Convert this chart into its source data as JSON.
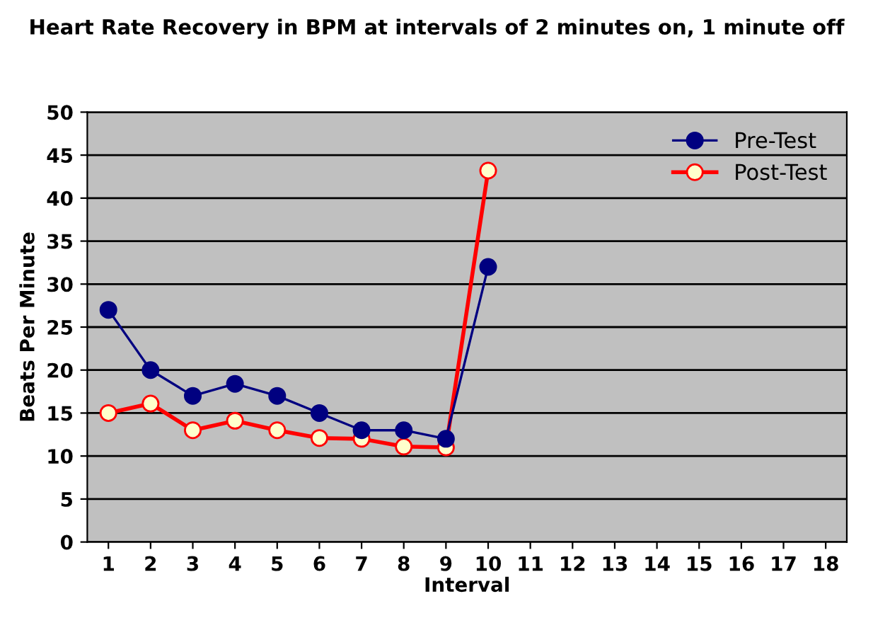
{
  "chart_data": {
    "type": "line",
    "title": "Heart Rate Recovery in BPM at intervals of 2 minutes on, 1 minute off",
    "xlabel": "Interval",
    "ylabel": "Beats Per Minute",
    "categories": [
      "1",
      "2",
      "3",
      "4",
      "5",
      "6",
      "7",
      "8",
      "9",
      "10",
      "11",
      "12",
      "13",
      "14",
      "15",
      "16",
      "17",
      "18"
    ],
    "series": [
      {
        "name": "Pre-Test",
        "color": "#000080",
        "values": [
          27,
          20,
          17,
          18.4,
          17,
          15,
          13,
          13,
          12,
          32,
          null,
          null,
          null,
          null,
          null,
          null,
          null,
          null
        ]
      },
      {
        "name": "Post-Test",
        "color": "#ff0000",
        "values": [
          15,
          16.1,
          13,
          14.1,
          13,
          12.1,
          12,
          11.1,
          11,
          43.2,
          null,
          null,
          null,
          null,
          null,
          null,
          null,
          null
        ]
      }
    ],
    "ylim": [
      0,
      50
    ],
    "yticks": [
      0,
      5,
      10,
      15,
      20,
      25,
      30,
      35,
      40,
      45,
      50
    ],
    "grid": "y",
    "legend": "top right",
    "marker": "circle",
    "line_style": "solid"
  }
}
